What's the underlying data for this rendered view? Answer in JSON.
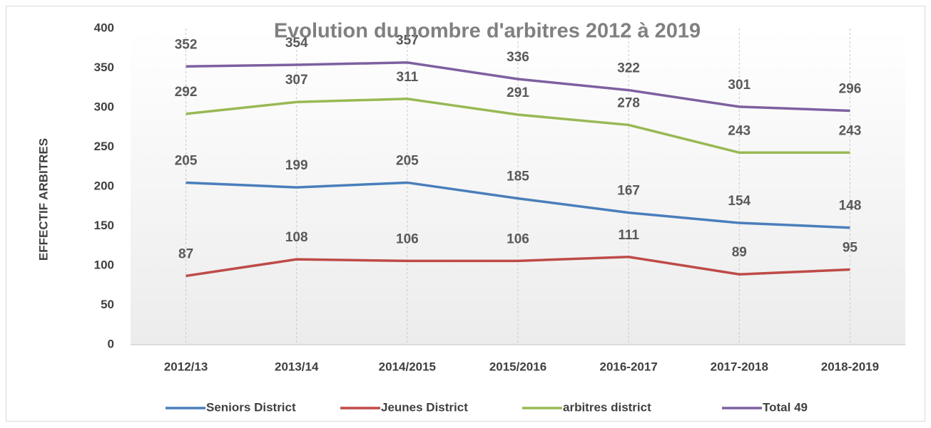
{
  "chart_data": {
    "type": "line",
    "title": "Evolution du nombre d'arbitres 2012 à 2019",
    "ylabel": "EFFECTIF ARBITRES",
    "categories": [
      "2012/13",
      "2013/14",
      "2014/2015",
      "2015/2016",
      "2016-2017",
      "2017-2018",
      "2018-2019"
    ],
    "series": [
      {
        "name": "Seniors District",
        "color": "#4a7ebb",
        "values": [
          205,
          199,
          205,
          185,
          167,
          154,
          148
        ]
      },
      {
        "name": "Jeunes District",
        "color": "#be4b48",
        "values": [
          87,
          108,
          106,
          106,
          111,
          89,
          95
        ]
      },
      {
        "name": "arbitres district",
        "color": "#98b954",
        "values": [
          292,
          307,
          311,
          291,
          278,
          243,
          243
        ]
      },
      {
        "name": "Total 49",
        "color": "#7d60a0",
        "values": [
          352,
          354,
          357,
          336,
          322,
          301,
          296
        ]
      }
    ],
    "ylim": [
      0,
      400
    ],
    "yticks": [
      0,
      50,
      100,
      150,
      200,
      250,
      300,
      350,
      400
    ],
    "xgrid": true,
    "legend": "bottom"
  }
}
